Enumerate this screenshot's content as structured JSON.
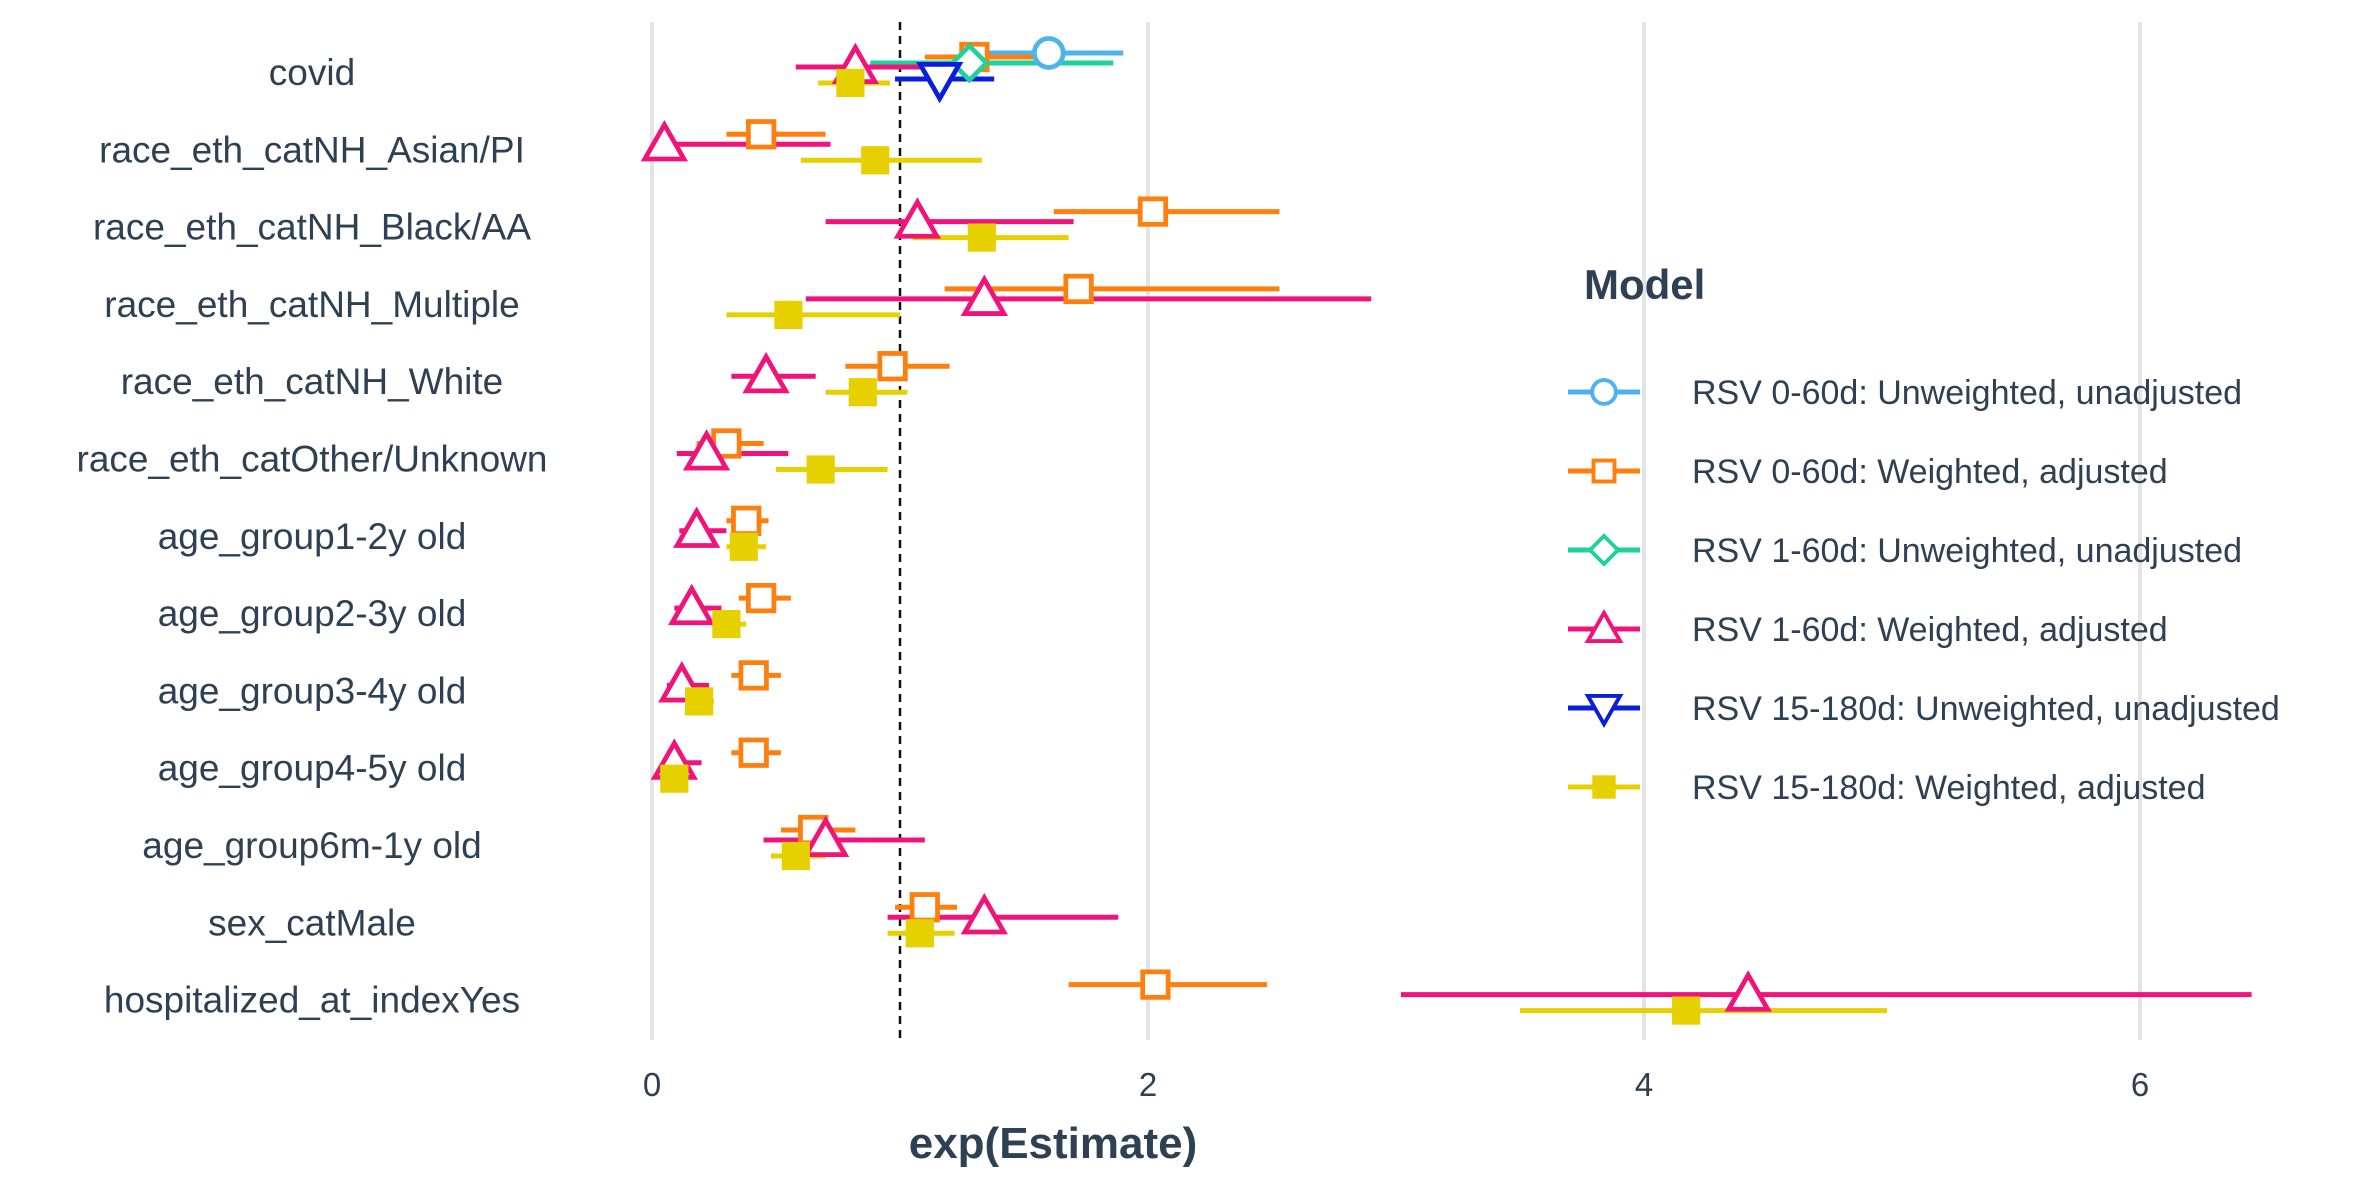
{
  "chart_data": {
    "type": "scatter",
    "subtype": "forest-plot",
    "xlabel": "exp(Estimate)",
    "ylabel": "",
    "xlim": [
      -0.2,
      6.45
    ],
    "xticks": [
      0,
      2,
      4,
      6
    ],
    "xtick_labels": [
      "0",
      "2",
      "4",
      "6"
    ],
    "reference_line": 1,
    "grid": "vertical major gridlines only",
    "legend_title": "Model",
    "legend_position": "right",
    "categories": [
      "covid",
      "race_eth_catNH_Asian/PI",
      "race_eth_catNH_Black/AA",
      "race_eth_catNH_Multiple",
      "race_eth_catNH_White",
      "race_eth_catOther/Unknown",
      "age_group1-2y old",
      "age_group2-3y old",
      "age_group3-4y old",
      "age_group4-5y old",
      "age_group6m-1y old",
      "sex_catMale",
      "hospitalized_at_indexYes"
    ],
    "series": [
      {
        "name": "RSV 0-60d: Unweighted, unadjusted",
        "color": "#4db3f0",
        "marker": "circle-open",
        "points": [
          {
            "category": "covid",
            "estimate": 1.6,
            "low": 1.3,
            "high": 1.9
          }
        ]
      },
      {
        "name": "RSV 0-60d: Weighted, adjusted",
        "color": "#ff7f0e",
        "marker": "square-open",
        "points": [
          {
            "category": "covid",
            "estimate": 1.3,
            "low": 1.1,
            "high": 1.55
          },
          {
            "category": "race_eth_catNH_Asian/PI",
            "estimate": 0.44,
            "low": 0.3,
            "high": 0.7
          },
          {
            "category": "race_eth_catNH_Black/AA",
            "estimate": 2.02,
            "low": 1.62,
            "high": 2.53
          },
          {
            "category": "race_eth_catNH_Multiple",
            "estimate": 1.72,
            "low": 1.18,
            "high": 2.53
          },
          {
            "category": "race_eth_catNH_White",
            "estimate": 0.97,
            "low": 0.78,
            "high": 1.2
          },
          {
            "category": "race_eth_catOther/Unknown",
            "estimate": 0.3,
            "low": 0.18,
            "high": 0.45
          },
          {
            "category": "age_group1-2y old",
            "estimate": 0.38,
            "low": 0.3,
            "high": 0.47
          },
          {
            "category": "age_group2-3y old",
            "estimate": 0.44,
            "low": 0.35,
            "high": 0.56
          },
          {
            "category": "age_group3-4y old",
            "estimate": 0.41,
            "low": 0.32,
            "high": 0.52
          },
          {
            "category": "age_group4-5y old",
            "estimate": 0.41,
            "low": 0.32,
            "high": 0.52
          },
          {
            "category": "age_group6m-1y old",
            "estimate": 0.65,
            "low": 0.52,
            "high": 0.82
          },
          {
            "category": "sex_catMale",
            "estimate": 1.1,
            "low": 0.98,
            "high": 1.23
          },
          {
            "category": "hospitalized_at_indexYes",
            "estimate": 2.03,
            "low": 1.68,
            "high": 2.48
          }
        ]
      },
      {
        "name": "RSV 1-60d: Unweighted, unadjusted",
        "color": "#1fd19a",
        "marker": "diamond-open",
        "points": [
          {
            "category": "covid",
            "estimate": 1.28,
            "low": 0.88,
            "high": 1.86
          }
        ]
      },
      {
        "name": "RSV 1-60d: Weighted, adjusted",
        "color": "#f0137a",
        "marker": "triangle-up-open",
        "points": [
          {
            "category": "covid",
            "estimate": 0.82,
            "low": 0.58,
            "high": 1.12
          },
          {
            "category": "race_eth_catNH_Asian/PI",
            "estimate": 0.05,
            "low": 0.01,
            "high": 0.72
          },
          {
            "category": "race_eth_catNH_Black/AA",
            "estimate": 1.07,
            "low": 0.7,
            "high": 1.7
          },
          {
            "category": "race_eth_catNH_Multiple",
            "estimate": 1.34,
            "low": 0.62,
            "high": 2.9
          },
          {
            "category": "race_eth_catNH_White",
            "estimate": 0.46,
            "low": 0.32,
            "high": 0.66
          },
          {
            "category": "race_eth_catOther/Unknown",
            "estimate": 0.22,
            "low": 0.1,
            "high": 0.55
          },
          {
            "category": "age_group1-2y old",
            "estimate": 0.18,
            "low": 0.11,
            "high": 0.3
          },
          {
            "category": "age_group2-3y old",
            "estimate": 0.16,
            "low": 0.09,
            "high": 0.28
          },
          {
            "category": "age_group3-4y old",
            "estimate": 0.12,
            "low": 0.06,
            "high": 0.23
          },
          {
            "category": "age_group4-5y old",
            "estimate": 0.09,
            "low": 0.04,
            "high": 0.2
          },
          {
            "category": "age_group6m-1y old",
            "estimate": 0.7,
            "low": 0.45,
            "high": 1.1
          },
          {
            "category": "sex_catMale",
            "estimate": 1.34,
            "low": 0.95,
            "high": 1.88
          },
          {
            "category": "hospitalized_at_indexYes",
            "estimate": 4.42,
            "low": 3.02,
            "high": 6.45
          }
        ]
      },
      {
        "name": "RSV 15-180d: Unweighted, unadjusted",
        "color": "#0a1fd8",
        "marker": "triangle-down-open",
        "points": [
          {
            "category": "covid",
            "estimate": 1.16,
            "low": 0.98,
            "high": 1.38
          }
        ]
      },
      {
        "name": "RSV 15-180d: Weighted, adjusted",
        "color": "#e6d000",
        "marker": "square-filled",
        "points": [
          {
            "category": "covid",
            "estimate": 0.8,
            "low": 0.67,
            "high": 0.96
          },
          {
            "category": "race_eth_catNH_Asian/PI",
            "estimate": 0.9,
            "low": 0.6,
            "high": 1.33
          },
          {
            "category": "race_eth_catNH_Black/AA",
            "estimate": 1.33,
            "low": 1.05,
            "high": 1.68
          },
          {
            "category": "race_eth_catNH_Multiple",
            "estimate": 0.55,
            "low": 0.3,
            "high": 1.0
          },
          {
            "category": "race_eth_catNH_White",
            "estimate": 0.85,
            "low": 0.7,
            "high": 1.03
          },
          {
            "category": "race_eth_catOther/Unknown",
            "estimate": 0.68,
            "low": 0.5,
            "high": 0.95
          },
          {
            "category": "age_group1-2y old",
            "estimate": 0.37,
            "low": 0.3,
            "high": 0.46
          },
          {
            "category": "age_group2-3y old",
            "estimate": 0.3,
            "low": 0.24,
            "high": 0.38
          },
          {
            "category": "age_group3-4y old",
            "estimate": 0.19,
            "low": 0.15,
            "high": 0.25
          },
          {
            "category": "age_group4-5y old",
            "estimate": 0.09,
            "low": 0.06,
            "high": 0.13
          },
          {
            "category": "age_group6m-1y old",
            "estimate": 0.58,
            "low": 0.48,
            "high": 0.7
          },
          {
            "category": "sex_catMale",
            "estimate": 1.08,
            "low": 0.95,
            "high": 1.22
          },
          {
            "category": "hospitalized_at_indexYes",
            "estimate": 4.17,
            "low": 3.5,
            "high": 4.98
          }
        ]
      }
    ]
  }
}
